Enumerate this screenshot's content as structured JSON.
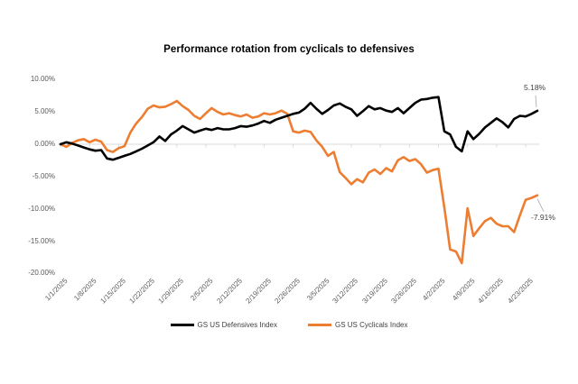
{
  "chart_data": {
    "type": "line",
    "title": "Performance rotation from cyclicals to defensives",
    "legend_position": "bottom",
    "gridlines": "zero-axis-only",
    "x_unit": "business days, 5 points per labeled weekly tick, 1/1/2025 through 4/25/2025",
    "ylim": [
      -20,
      10
    ],
    "y_axis": {
      "tick_labels": [
        "10.00%",
        "5.00%",
        "0.00%",
        "-5.00%",
        "-10.00%",
        "-15.00%",
        "-20.00%"
      ],
      "tick_values": [
        10,
        5,
        0,
        -5,
        -10,
        -15,
        -20
      ]
    },
    "x_axis": {
      "tick_labels": [
        "1/1/2025",
        "1/8/2025",
        "1/15/2025",
        "1/22/2025",
        "1/29/2025",
        "2/5/2025",
        "2/12/2025",
        "2/19/2025",
        "2/26/2025",
        "3/5/2025",
        "3/12/2025",
        "3/19/2025",
        "3/26/2025",
        "4/2/2025",
        "4/9/2025",
        "4/16/2025",
        "4/23/2025"
      ],
      "points_per_tick": 5
    },
    "series": [
      {
        "name": "GS US Defensives Index",
        "color": "#000000",
        "end_label": "5.18%",
        "end_value": 5.18,
        "values": [
          0.0,
          0.3,
          0.1,
          -0.2,
          -0.5,
          -0.8,
          -1.0,
          -0.9,
          -2.2,
          -2.4,
          -2.1,
          -1.8,
          -1.5,
          -1.1,
          -0.7,
          -0.2,
          0.3,
          1.2,
          0.5,
          1.5,
          2.1,
          2.8,
          2.3,
          1.8,
          2.1,
          2.4,
          2.2,
          2.5,
          2.3,
          2.3,
          2.5,
          2.8,
          2.7,
          2.9,
          3.2,
          3.6,
          3.3,
          3.8,
          4.1,
          4.4,
          4.7,
          4.9,
          5.5,
          6.4,
          5.5,
          4.7,
          5.3,
          6.0,
          6.3,
          5.8,
          5.4,
          4.4,
          5.1,
          5.9,
          5.4,
          5.6,
          5.2,
          5.0,
          5.6,
          4.8,
          5.6,
          6.4,
          6.9,
          7.0,
          7.2,
          7.3,
          2.0,
          1.5,
          -0.4,
          -1.1,
          2.0,
          0.8,
          1.6,
          2.6,
          3.3,
          4.0,
          3.4,
          2.6,
          3.9,
          4.4,
          4.3,
          4.7,
          5.18
        ]
      },
      {
        "name": "GS US Cyclicals Index",
        "color": "#ED7D31",
        "end_label": "-7.91%",
        "end_value": -7.91,
        "values": [
          0.0,
          -0.4,
          0.2,
          0.6,
          0.8,
          0.3,
          0.7,
          0.4,
          -0.9,
          -1.2,
          -0.6,
          -0.3,
          1.8,
          3.2,
          4.2,
          5.5,
          6.0,
          5.7,
          5.8,
          6.2,
          6.7,
          5.9,
          5.3,
          4.4,
          3.9,
          4.8,
          5.6,
          5.0,
          4.6,
          4.8,
          4.5,
          4.3,
          4.6,
          4.1,
          4.3,
          4.8,
          4.6,
          4.8,
          5.2,
          4.7,
          2.0,
          1.8,
          2.1,
          1.9,
          0.6,
          -0.4,
          -1.8,
          -1.2,
          -4.3,
          -5.2,
          -6.2,
          -5.4,
          -5.9,
          -4.4,
          -3.9,
          -4.6,
          -3.7,
          -4.2,
          -2.5,
          -2.0,
          -2.6,
          -2.3,
          -3.1,
          -4.4,
          -4.0,
          -3.8,
          -9.8,
          -16.3,
          -16.6,
          -18.4,
          -9.9,
          -14.2,
          -13.0,
          -11.9,
          -11.4,
          -12.3,
          -12.7,
          -12.7,
          -13.6,
          -11.0,
          -8.6,
          -8.3,
          -7.91
        ]
      }
    ],
    "colors": {
      "axis_line": "#D9D9D9",
      "tick_mark": "#D9D9D9",
      "leader_line": "#A6A6A6",
      "axis_text": "#595959"
    }
  }
}
